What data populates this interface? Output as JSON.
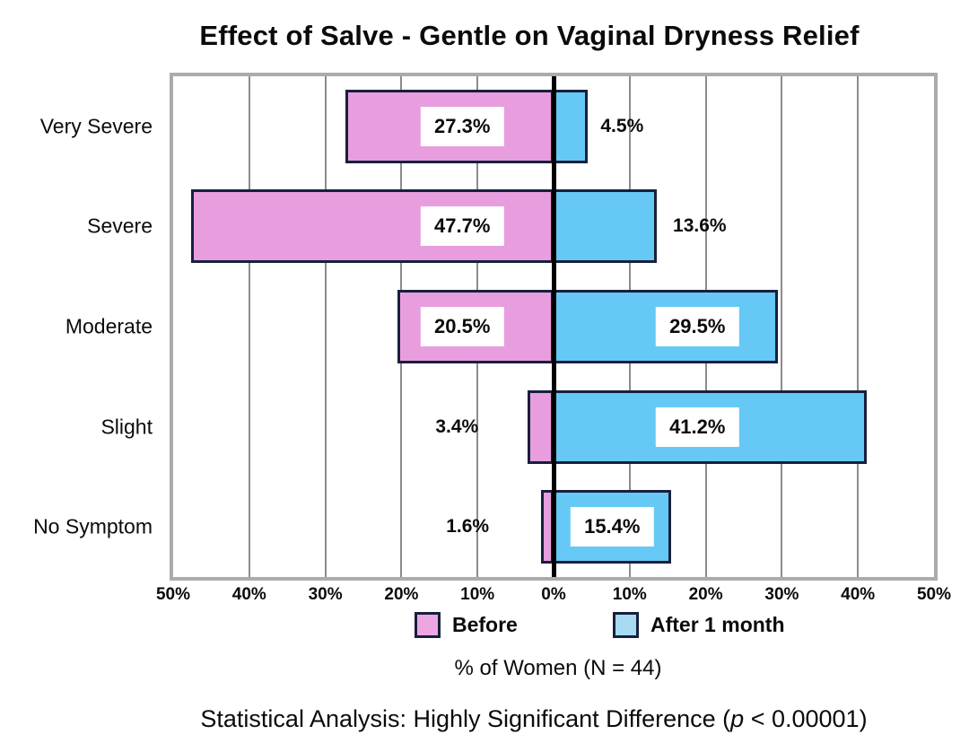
{
  "title": "Effect of Salve - Gentle on Vaginal Dryness Relief",
  "axis_caption": "% of Women (N = 44)",
  "footnote": {
    "prefix": "Statistical Analysis: Highly Significant Difference (",
    "italic": "p",
    "suffix": " < 0.00001)"
  },
  "chart_data": {
    "type": "bar",
    "orientation": "horizontal-diverging",
    "title": "Effect of Salve - Gentle on Vaginal Dryness Relief",
    "xlabel": "% of Women (N = 44)",
    "categories": [
      "Very Severe",
      "Severe",
      "Moderate",
      "Slight",
      "No Symptom"
    ],
    "x_axis": {
      "min": -50,
      "max": 50,
      "tick_step": 10,
      "tick_labels": [
        "50%",
        "40%",
        "30%",
        "20%",
        "10%",
        "0%",
        "10%",
        "20%",
        "30%",
        "40%",
        "50%"
      ],
      "grid": true
    },
    "legend_position": "bottom",
    "series": [
      {
        "name": "Before",
        "side": "left",
        "color": "#E89EDE",
        "legend_color": "#EDA6E2",
        "values": [
          27.3,
          47.7,
          20.5,
          3.4,
          1.6
        ],
        "labels": [
          "27.3%",
          "47.7%",
          "20.5%",
          "3.4%",
          "1.6%"
        ],
        "label_placement": [
          {
            "style": "inside",
            "center_pct": 12.0
          },
          {
            "style": "inside",
            "center_pct": 12.0
          },
          {
            "style": "inside",
            "center_pct": 12.0
          },
          {
            "style": "outside",
            "center_pct": 12.7
          },
          {
            "style": "outside",
            "center_pct": 11.3
          }
        ]
      },
      {
        "name": "After 1 month",
        "side": "right",
        "color": "#66C9F5",
        "legend_color": "#A6DBF2",
        "values": [
          4.5,
          13.6,
          29.5,
          41.2,
          15.4
        ],
        "labels": [
          "4.5%",
          "13.6%",
          "29.5%",
          "41.2%",
          "15.4%"
        ],
        "label_placement": [
          {
            "style": "outside",
            "center_pct": 9.0
          },
          {
            "style": "outside",
            "center_pct": 19.2
          },
          {
            "style": "inside",
            "center_pct": 18.9
          },
          {
            "style": "inside",
            "center_pct": 18.9
          },
          {
            "style": "inside",
            "center_pct": 7.7
          }
        ]
      }
    ],
    "styles": {
      "bar_border": "#17203C",
      "grid_color": "#8C8C8C",
      "zero_line_color": "#000000",
      "plot_border": "#ABABAB"
    }
  }
}
